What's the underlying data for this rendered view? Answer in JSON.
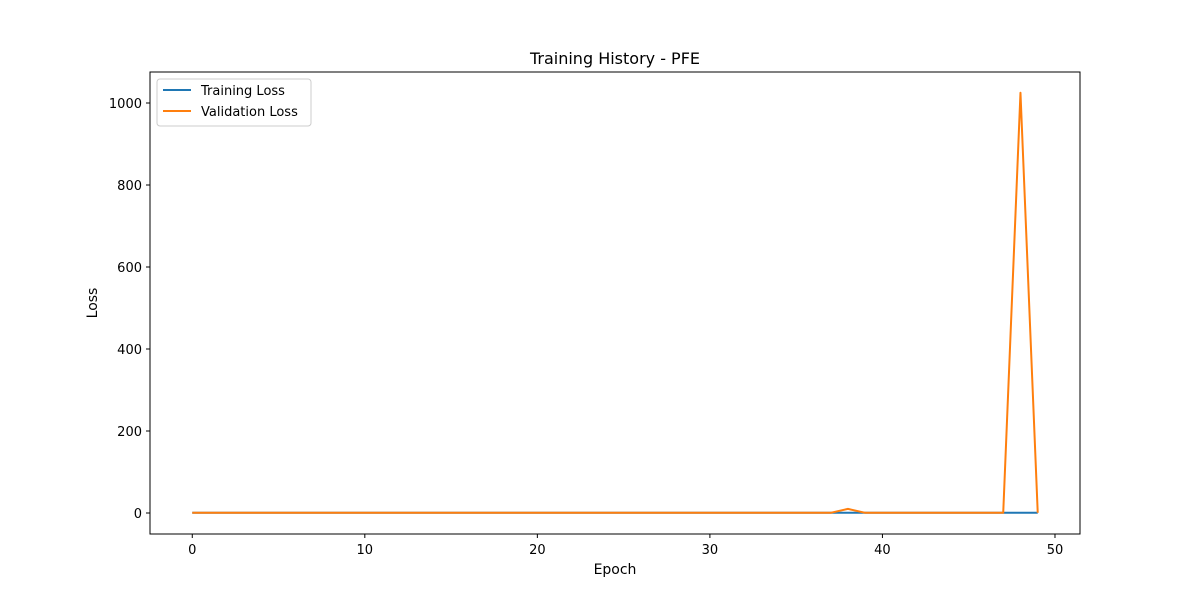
{
  "chart_data": {
    "type": "line",
    "title": "Training History - PFE",
    "xlabel": "Epoch",
    "ylabel": "Loss",
    "xlim": [
      -2.45,
      51.45
    ],
    "ylim": [
      -51.2,
      1075.6
    ],
    "xticks": [
      0,
      10,
      20,
      30,
      40,
      50
    ],
    "yticks": [
      0,
      200,
      400,
      600,
      800,
      1000
    ],
    "grid": false,
    "legend_position": "upper left",
    "series": [
      {
        "name": "Training Loss",
        "color": "#1f77b4",
        "x": [
          0,
          1,
          2,
          3,
          4,
          5,
          6,
          7,
          8,
          9,
          10,
          11,
          12,
          13,
          14,
          15,
          16,
          17,
          18,
          19,
          20,
          21,
          22,
          23,
          24,
          25,
          26,
          27,
          28,
          29,
          30,
          31,
          32,
          33,
          34,
          35,
          36,
          37,
          38,
          39,
          40,
          41,
          42,
          43,
          44,
          45,
          46,
          47,
          48,
          49
        ],
        "values": [
          0.5,
          0.5,
          0.5,
          0.5,
          0.5,
          0.5,
          0.5,
          0.5,
          0.5,
          0.5,
          0.5,
          0.5,
          0.5,
          0.5,
          0.5,
          0.5,
          0.5,
          0.5,
          0.5,
          0.5,
          0.5,
          0.5,
          0.5,
          0.5,
          0.5,
          0.5,
          0.5,
          0.5,
          0.5,
          0.5,
          0.5,
          0.5,
          0.5,
          0.5,
          0.5,
          0.5,
          0.5,
          0.5,
          0.5,
          0.5,
          0.5,
          0.5,
          0.5,
          0.5,
          0.5,
          0.5,
          0.5,
          0.5,
          0.5,
          0.5
        ]
      },
      {
        "name": "Validation Loss",
        "color": "#ff7f0e",
        "x": [
          0,
          1,
          2,
          3,
          4,
          5,
          6,
          7,
          8,
          9,
          10,
          11,
          12,
          13,
          14,
          15,
          16,
          17,
          18,
          19,
          20,
          21,
          22,
          23,
          24,
          25,
          26,
          27,
          28,
          29,
          30,
          31,
          32,
          33,
          34,
          35,
          36,
          37,
          38,
          39,
          40,
          41,
          42,
          43,
          44,
          45,
          46,
          47,
          48,
          49
        ],
        "values": [
          0.5,
          0.5,
          0.5,
          0.5,
          0.5,
          0.5,
          0.5,
          0.5,
          0.5,
          0.5,
          0.5,
          0.5,
          0.5,
          0.5,
          0.5,
          0.5,
          0.5,
          0.5,
          0.5,
          0.5,
          0.5,
          0.5,
          0.5,
          0.5,
          0.5,
          0.5,
          0.5,
          0.5,
          0.5,
          0.5,
          0.5,
          0.5,
          0.5,
          0.5,
          0.5,
          0.5,
          0.5,
          0.5,
          10,
          0.5,
          0.5,
          0.5,
          0.5,
          0.5,
          0.5,
          0.5,
          0.5,
          0.5,
          1025,
          0.5
        ]
      }
    ]
  }
}
